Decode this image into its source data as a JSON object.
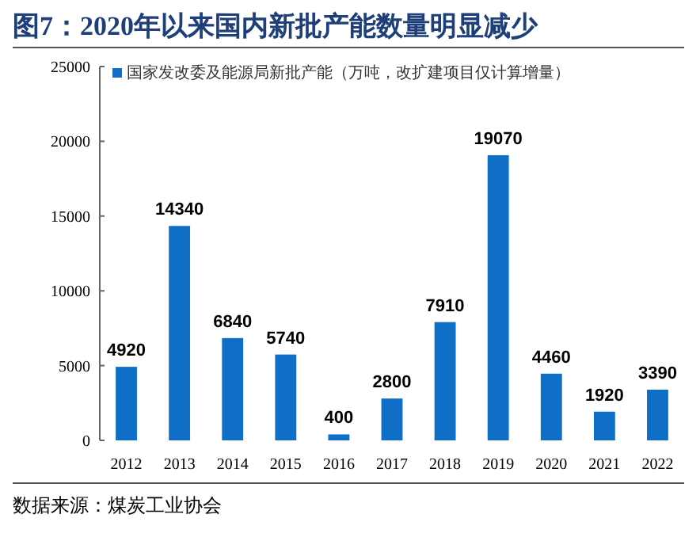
{
  "chart_data": {
    "type": "bar",
    "title": "图7：2020年以来国内新批产能数量明显减少",
    "categories": [
      "2012",
      "2013",
      "2014",
      "2015",
      "2016",
      "2017",
      "2018",
      "2019",
      "2020",
      "2021",
      "2022"
    ],
    "series": [
      {
        "name": "国家发改委及能源局新批产能（万吨，改扩建项目仅计算增量）",
        "color": "#0f6fc6",
        "values": [
          4920,
          14340,
          6840,
          5740,
          400,
          2800,
          7910,
          19070,
          4460,
          1920,
          3390
        ]
      }
    ],
    "ylim": [
      0,
      25000
    ],
    "yticks": [
      0,
      5000,
      10000,
      15000,
      20000,
      25000
    ],
    "data_labels": true,
    "legend": "top left",
    "annotations": [
      "数据来源：煤炭工业协会"
    ]
  }
}
